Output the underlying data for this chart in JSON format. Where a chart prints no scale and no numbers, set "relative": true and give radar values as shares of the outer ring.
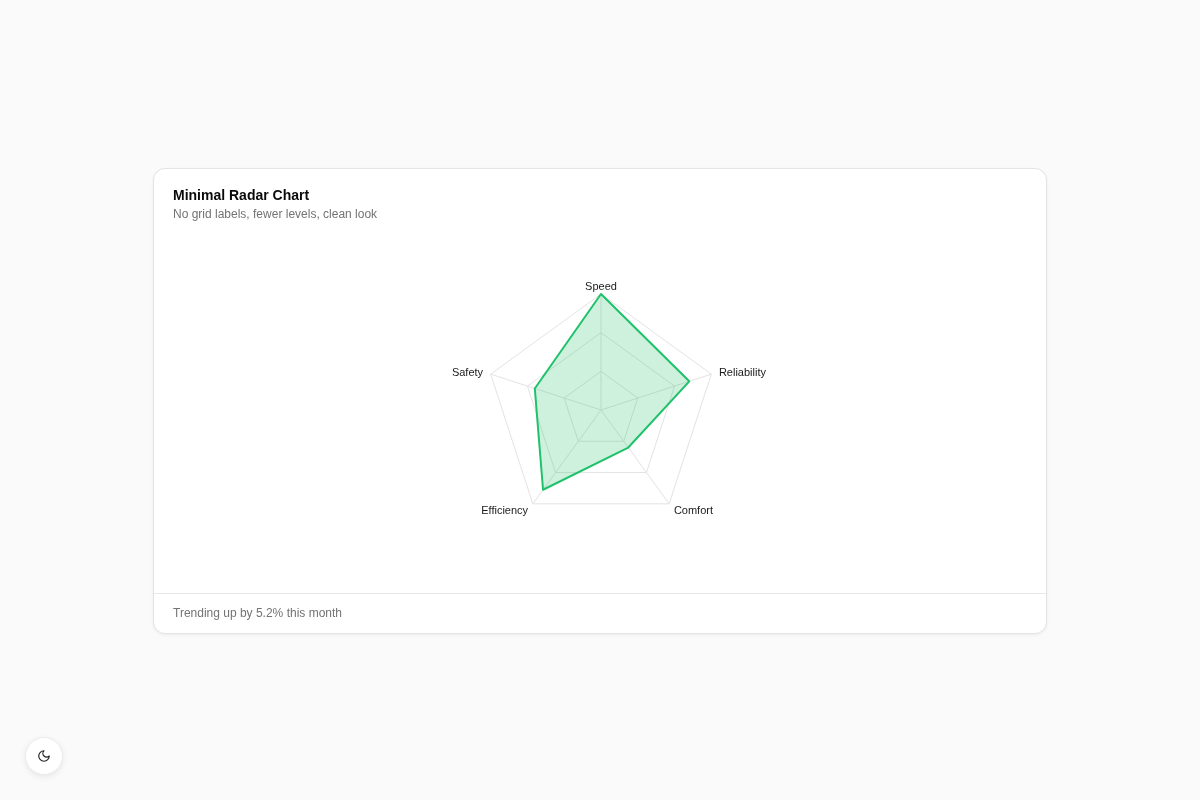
{
  "chart_data": {
    "type": "radar",
    "title": "Minimal Radar Chart",
    "subtitle": "No grid labels, fewer levels, clean look",
    "categories": [
      "Speed",
      "Reliability",
      "Comfort",
      "Efficiency",
      "Safety"
    ],
    "relative": true,
    "series": [
      {
        "color": "#1fc16b",
        "values": [
          1,
          0.8,
          0.4,
          0.85,
          0.6
        ]
      }
    ],
    "grid": true,
    "annotations": [
      "Trending up by 5.2% this month"
    ]
  }
}
